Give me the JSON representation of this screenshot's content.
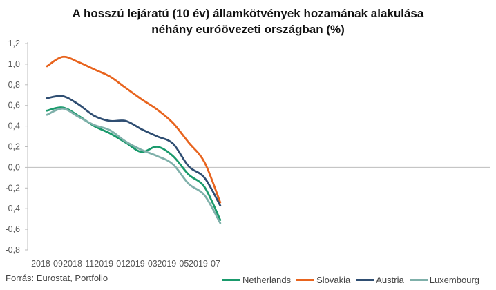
{
  "chart_data": {
    "type": "line",
    "title_line1": "A hosszú lejáratú (10 év) államkötvények hozamának alakulása",
    "title_line2": "néhány euróövezeti országban (%)",
    "x_labels": [
      "2018-09",
      "2018-11",
      "2019-01",
      "2019-03",
      "2019-05",
      "2019-07"
    ],
    "ylim": [
      -0.8,
      1.2
    ],
    "y_ticks": [
      "1,2",
      "1,0",
      "0,8",
      "0,6",
      "0,4",
      "0,2",
      "0,0",
      "-0,2",
      "-0,4",
      "-0,6",
      "-0,8"
    ],
    "x": [
      "2018-09",
      "2018-10",
      "2018-11",
      "2018-12",
      "2019-01",
      "2019-02",
      "2019-03",
      "2019-04",
      "2019-05",
      "2019-06",
      "2019-07",
      "2019-08"
    ],
    "series": [
      {
        "name": "Netherlands",
        "color": "#1a9a6c",
        "values": [
          0.55,
          0.58,
          0.5,
          0.4,
          0.33,
          0.24,
          0.15,
          0.2,
          0.11,
          -0.07,
          -0.19,
          -0.51
        ]
      },
      {
        "name": "Slovakia",
        "color": "#e8641e",
        "values": [
          0.98,
          1.07,
          1.02,
          0.95,
          0.88,
          0.77,
          0.66,
          0.56,
          0.43,
          0.24,
          0.05,
          -0.34
        ]
      },
      {
        "name": "Austria",
        "color": "#2f4e72",
        "values": [
          0.67,
          0.69,
          0.61,
          0.5,
          0.45,
          0.45,
          0.37,
          0.3,
          0.23,
          0.01,
          -0.1,
          -0.37
        ]
      },
      {
        "name": "Luxembourg",
        "color": "#7fb0aa",
        "values": [
          0.51,
          0.57,
          0.49,
          0.41,
          0.36,
          0.25,
          0.17,
          0.11,
          0.03,
          -0.16,
          -0.27,
          -0.54
        ]
      }
    ],
    "grid": false,
    "legend_position": "bottom-right"
  },
  "source": "Forrás: Eurostat, Portfolio"
}
